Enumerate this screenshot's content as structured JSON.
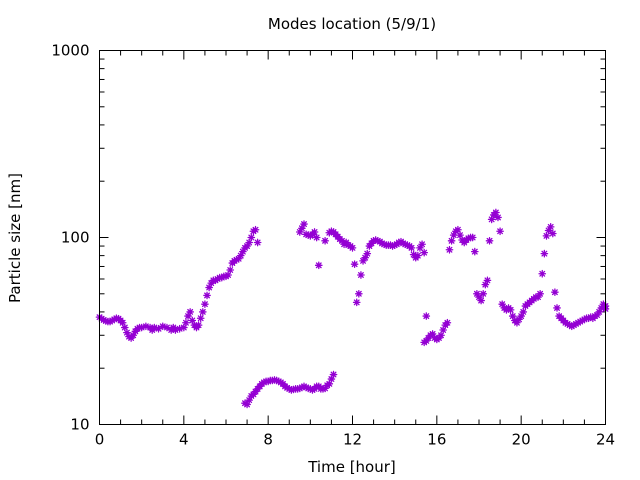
{
  "chart_data": {
    "type": "scatter",
    "title": "Modes location (5/9/1)",
    "xlabel": "Time [hour]",
    "ylabel": "Particle size [nm]",
    "xlim": [
      0,
      24
    ],
    "ylim": [
      10,
      1000
    ],
    "yscale": "log",
    "x_ticks": [
      0,
      4,
      8,
      12,
      16,
      20,
      24
    ],
    "x_tick_labels": [
      "0",
      "4",
      "8",
      "12",
      "16",
      "20",
      "24"
    ],
    "y_ticks": [
      10,
      100,
      1000
    ],
    "y_tick_labels": [
      "10",
      "100",
      "1000"
    ],
    "grid": false,
    "marker": "star",
    "color": "#9400D3",
    "series": [
      {
        "points": [
          [
            0.0,
            37.5
          ],
          [
            0.1,
            36.8
          ],
          [
            0.2,
            36.2
          ],
          [
            0.3,
            35.8
          ],
          [
            0.4,
            35.5
          ],
          [
            0.5,
            35.5
          ],
          [
            0.6,
            36
          ],
          [
            0.7,
            36.5
          ],
          [
            0.8,
            37
          ],
          [
            0.9,
            36.8
          ],
          [
            1.0,
            36
          ],
          [
            1.1,
            35
          ],
          [
            1.2,
            33
          ],
          [
            1.3,
            31
          ],
          [
            1.4,
            29.5
          ],
          [
            1.5,
            29
          ],
          [
            1.6,
            30
          ],
          [
            1.7,
            31.5
          ],
          [
            1.8,
            32.5
          ],
          [
            1.9,
            33
          ],
          [
            2.0,
            33
          ],
          [
            2.2,
            33.5
          ],
          [
            2.4,
            33
          ],
          [
            2.5,
            32
          ],
          [
            2.6,
            33
          ],
          [
            2.8,
            32.5
          ],
          [
            3.0,
            33.5
          ],
          [
            3.2,
            33
          ],
          [
            3.4,
            32
          ],
          [
            3.5,
            33
          ],
          [
            3.6,
            32
          ],
          [
            3.8,
            32.5
          ],
          [
            4.0,
            33
          ],
          [
            4.1,
            35
          ],
          [
            4.2,
            38
          ],
          [
            4.3,
            40
          ],
          [
            4.4,
            36
          ],
          [
            4.5,
            34
          ],
          [
            4.6,
            33
          ],
          [
            4.7,
            34
          ],
          [
            4.8,
            37
          ],
          [
            4.9,
            40
          ],
          [
            5.0,
            44
          ],
          [
            5.1,
            49
          ],
          [
            5.2,
            54
          ],
          [
            5.3,
            57
          ],
          [
            5.4,
            59
          ],
          [
            5.5,
            59
          ],
          [
            5.6,
            60
          ],
          [
            5.7,
            61
          ],
          [
            5.8,
            61
          ],
          [
            5.9,
            62
          ],
          [
            6.0,
            62
          ],
          [
            6.1,
            63
          ],
          [
            6.2,
            67
          ],
          [
            6.3,
            73
          ],
          [
            6.4,
            75
          ],
          [
            6.5,
            76
          ],
          [
            6.6,
            77
          ],
          [
            6.7,
            80
          ],
          [
            6.8,
            84
          ],
          [
            6.9,
            88
          ],
          [
            7.0,
            90
          ],
          [
            7.1,
            94
          ],
          [
            7.2,
            100
          ],
          [
            7.3,
            108
          ],
          [
            7.4,
            110
          ],
          [
            7.5,
            94
          ],
          [
            6.9,
            13
          ],
          [
            7.0,
            12.8
          ],
          [
            7.1,
            13.5
          ],
          [
            7.2,
            14.2
          ],
          [
            7.3,
            14.5
          ],
          [
            7.4,
            15
          ],
          [
            7.5,
            15.5
          ],
          [
            7.6,
            16
          ],
          [
            7.7,
            16.5
          ],
          [
            7.8,
            16.8
          ],
          [
            7.9,
            17
          ],
          [
            8.0,
            17
          ],
          [
            8.1,
            17.2
          ],
          [
            8.2,
            17.2
          ],
          [
            8.3,
            17.3
          ],
          [
            8.4,
            17.2
          ],
          [
            8.5,
            17
          ],
          [
            8.6,
            16.8
          ],
          [
            8.7,
            16.5
          ],
          [
            8.8,
            16
          ],
          [
            8.9,
            15.7
          ],
          [
            9.0,
            15.5
          ],
          [
            9.1,
            15.3
          ],
          [
            9.2,
            15.4
          ],
          [
            9.3,
            15.5
          ],
          [
            9.4,
            15.5
          ],
          [
            9.5,
            15.6
          ],
          [
            9.6,
            15.8
          ],
          [
            9.7,
            16
          ],
          [
            9.8,
            15.8
          ],
          [
            9.9,
            15.6
          ],
          [
            10.0,
            15.5
          ],
          [
            10.1,
            15.3
          ],
          [
            10.2,
            15.5
          ],
          [
            10.3,
            16
          ],
          [
            10.4,
            16
          ],
          [
            10.5,
            15.5
          ],
          [
            10.6,
            15.5
          ],
          [
            10.7,
            15.6
          ],
          [
            10.8,
            16.2
          ],
          [
            10.9,
            16.5
          ],
          [
            11.0,
            17.5
          ],
          [
            11.1,
            18.5
          ],
          [
            9.5,
            107
          ],
          [
            9.6,
            112
          ],
          [
            9.7,
            118
          ],
          [
            9.8,
            104
          ],
          [
            9.9,
            103
          ],
          [
            10.0,
            102
          ],
          [
            10.1,
            104
          ],
          [
            10.2,
            107
          ],
          [
            10.3,
            100
          ],
          [
            10.4,
            71
          ],
          [
            10.7,
            96
          ],
          [
            10.9,
            106
          ],
          [
            11.0,
            108
          ],
          [
            11.1,
            107
          ],
          [
            11.2,
            104
          ],
          [
            11.3,
            101
          ],
          [
            11.4,
            98
          ],
          [
            11.5,
            96
          ],
          [
            11.6,
            92
          ],
          [
            11.7,
            94
          ],
          [
            11.8,
            91
          ],
          [
            11.9,
            90
          ],
          [
            12.0,
            88
          ],
          [
            12.1,
            72
          ],
          [
            12.2,
            45
          ],
          [
            12.3,
            50
          ],
          [
            12.4,
            63
          ],
          [
            12.5,
            75
          ],
          [
            12.6,
            78
          ],
          [
            12.7,
            82
          ],
          [
            12.8,
            90
          ],
          [
            12.9,
            93
          ],
          [
            13.0,
            96
          ],
          [
            13.1,
            97
          ],
          [
            13.2,
            96
          ],
          [
            13.3,
            95
          ],
          [
            13.4,
            93
          ],
          [
            13.5,
            92
          ],
          [
            13.6,
            91
          ],
          [
            13.7,
            91
          ],
          [
            13.8,
            91
          ],
          [
            13.9,
            90
          ],
          [
            14.0,
            91
          ],
          [
            14.1,
            92
          ],
          [
            14.2,
            94
          ],
          [
            14.3,
            95
          ],
          [
            14.4,
            93
          ],
          [
            14.5,
            92
          ],
          [
            14.6,
            91
          ],
          [
            14.7,
            90
          ],
          [
            14.8,
            88
          ],
          [
            14.9,
            81
          ],
          [
            15.0,
            78
          ],
          [
            15.1,
            80
          ],
          [
            15.2,
            88
          ],
          [
            15.3,
            92
          ],
          [
            15.4,
            83
          ],
          [
            15.5,
            38
          ],
          [
            15.4,
            27.5
          ],
          [
            15.5,
            28
          ],
          [
            15.6,
            29
          ],
          [
            15.7,
            30
          ],
          [
            15.8,
            30.5
          ],
          [
            15.9,
            29
          ],
          [
            16.0,
            28.5
          ],
          [
            16.1,
            29
          ],
          [
            16.2,
            30
          ],
          [
            16.3,
            32
          ],
          [
            16.4,
            34
          ],
          [
            16.5,
            35
          ],
          [
            16.6,
            86
          ],
          [
            16.7,
            96
          ],
          [
            16.8,
            103
          ],
          [
            16.9,
            108
          ],
          [
            17.0,
            110
          ],
          [
            17.1,
            103
          ],
          [
            17.2,
            97
          ],
          [
            17.3,
            94
          ],
          [
            17.4,
            97
          ],
          [
            17.5,
            99
          ],
          [
            17.6,
            100
          ],
          [
            17.7,
            100
          ],
          [
            17.8,
            84
          ],
          [
            17.9,
            50
          ],
          [
            18.0,
            48
          ],
          [
            18.1,
            46
          ],
          [
            18.2,
            50
          ],
          [
            18.3,
            56
          ],
          [
            18.4,
            59
          ],
          [
            18.5,
            96
          ],
          [
            18.6,
            125
          ],
          [
            18.7,
            132
          ],
          [
            18.8,
            136
          ],
          [
            18.9,
            128
          ],
          [
            19.0,
            108
          ],
          [
            19.1,
            44
          ],
          [
            19.2,
            42
          ],
          [
            19.3,
            41
          ],
          [
            19.4,
            42
          ],
          [
            19.5,
            41
          ],
          [
            19.6,
            38
          ],
          [
            19.7,
            36
          ],
          [
            19.8,
            35
          ],
          [
            19.9,
            36.5
          ],
          [
            20.0,
            38
          ],
          [
            20.1,
            40
          ],
          [
            20.2,
            43
          ],
          [
            20.3,
            44
          ],
          [
            20.4,
            45
          ],
          [
            20.5,
            46
          ],
          [
            20.6,
            47
          ],
          [
            20.7,
            48
          ],
          [
            20.8,
            48
          ],
          [
            20.9,
            50
          ],
          [
            21.0,
            64
          ],
          [
            21.1,
            82
          ],
          [
            21.2,
            102
          ],
          [
            21.3,
            109
          ],
          [
            21.4,
            114
          ],
          [
            21.5,
            105
          ],
          [
            21.6,
            51
          ],
          [
            21.7,
            42
          ],
          [
            21.8,
            38
          ],
          [
            21.9,
            37
          ],
          [
            22.0,
            36
          ],
          [
            22.1,
            35
          ],
          [
            22.2,
            34.5
          ],
          [
            22.3,
            34
          ],
          [
            22.4,
            33.5
          ],
          [
            22.5,
            34
          ],
          [
            22.6,
            34.5
          ],
          [
            22.7,
            35
          ],
          [
            22.8,
            35.5
          ],
          [
            22.9,
            36
          ],
          [
            23.0,
            36.5
          ],
          [
            23.1,
            37
          ],
          [
            23.2,
            37
          ],
          [
            23.3,
            37.5
          ],
          [
            23.4,
            37
          ],
          [
            23.5,
            38
          ],
          [
            23.6,
            38.5
          ],
          [
            23.7,
            40
          ],
          [
            23.8,
            42
          ],
          [
            23.9,
            44
          ],
          [
            24.0,
            43
          ],
          [
            24.0,
            41.5
          ]
        ]
      }
    ]
  }
}
